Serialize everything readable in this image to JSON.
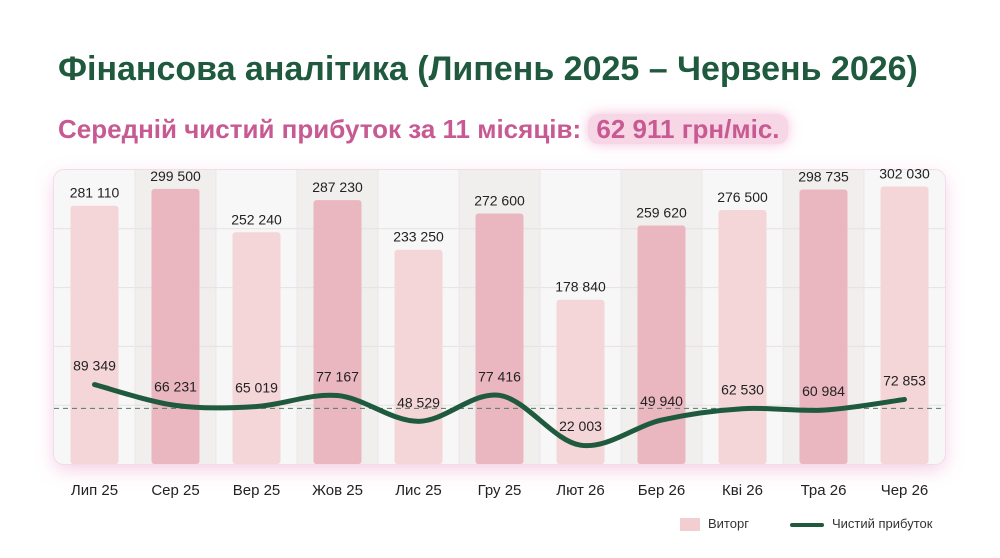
{
  "header": {
    "title": "Фінансова аналітика (Липень 2025 – Червень 2026)",
    "subtitle_prefix": "Середній чистий прибуток за 11 місяців:",
    "subtitle_value": "62 911 грн/міс."
  },
  "chart_data": {
    "type": "bar",
    "categories": [
      "Лип 25",
      "Сер 25",
      "Вер 25",
      "Жов 25",
      "Лис 25",
      "Гру 25",
      "Лют 26",
      "Бер 26",
      "Кві 26",
      "Тра 26",
      "Чер 26"
    ],
    "series": [
      {
        "name": "Виторг",
        "type": "bar",
        "values": [
          281110,
          299500,
          252240,
          287230,
          233250,
          272600,
          178840,
          259620,
          276500,
          298735,
          302030
        ],
        "labels": [
          "281 110",
          "299 500",
          "252 240",
          "287 230",
          "233 250",
          "272 600",
          "178 840",
          "259 620",
          "276 500",
          "298 735",
          "302 030"
        ]
      },
      {
        "name": "Чистий прибуток",
        "type": "line",
        "values": [
          89349,
          66231,
          65019,
          77167,
          48529,
          77416,
          22003,
          49940,
          62530,
          60984,
          72853
        ],
        "labels": [
          "89 349",
          "66 231",
          "65 019",
          "77 167",
          "48 529",
          "77 416",
          "22 003",
          "49 940",
          "62 530",
          "60 984",
          "72 853"
        ]
      }
    ],
    "average_line": 62911,
    "ylim": [
      0,
      320000
    ],
    "grid": true,
    "legend": "bottom-right",
    "colors": {
      "bar_light": "#f4d6d9",
      "bar_dark": "#eab6bf",
      "line": "#1f5a3f",
      "average": "#4f7c64"
    }
  }
}
